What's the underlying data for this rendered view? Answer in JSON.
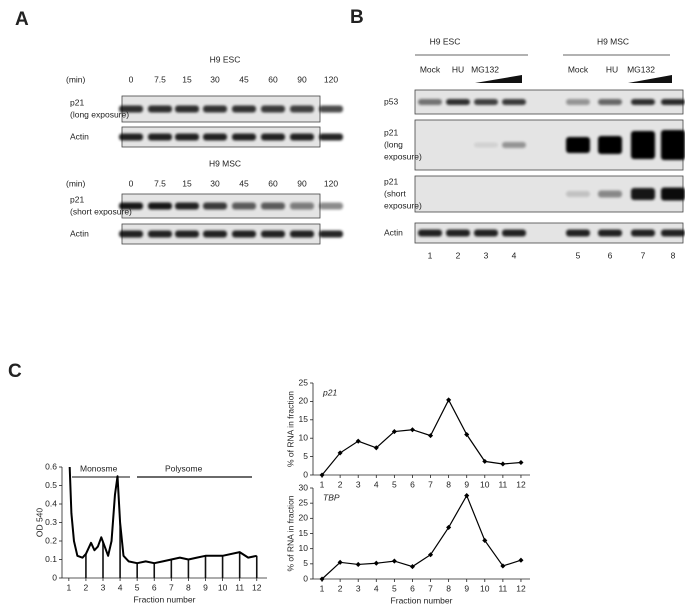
{
  "panel_a": {
    "label": "A",
    "groups": [
      {
        "title": "H9 ESC",
        "time_label": "(min)",
        "times": [
          "0",
          "7.5",
          "15",
          "30",
          "45",
          "60",
          "90",
          "120"
        ],
        "rows": [
          {
            "lines": [
              "p21",
              "(long exposure)"
            ]
          },
          {
            "lines": [
              "Actin"
            ]
          }
        ]
      },
      {
        "title": "H9 MSC",
        "time_label": "(min)",
        "times": [
          "0",
          "7.5",
          "15",
          "30",
          "45",
          "60",
          "90",
          "120"
        ],
        "rows": [
          {
            "lines": [
              "p21",
              "(short exposure)"
            ]
          },
          {
            "lines": [
              "Actin"
            ]
          }
        ]
      }
    ]
  },
  "panel_b": {
    "label": "B",
    "groups": [
      {
        "title": "H9 ESC",
        "lanes": [
          "Mock",
          "HU",
          "MG132"
        ]
      },
      {
        "title": "H9 MSC",
        "lanes": [
          "Mock",
          "HU",
          "MG132"
        ]
      }
    ],
    "rows": [
      {
        "lines": [
          "p53"
        ]
      },
      {
        "lines": [
          "p21",
          "(long",
          "exposure)"
        ]
      },
      {
        "lines": [
          "p21",
          "(short",
          "exposure)"
        ]
      },
      {
        "lines": [
          "Actin"
        ]
      }
    ],
    "lane_numbers": [
      "1",
      "2",
      "3",
      "4",
      "5",
      "6",
      "7",
      "8"
    ]
  },
  "panel_c": {
    "label": "C"
  },
  "chart_data": [
    {
      "type": "line",
      "ylabel": "OD 540",
      "xlabel": "Fraction number",
      "annotations": [
        "Monosme",
        "Polysome"
      ],
      "x": [
        1.05,
        1.15,
        1.3,
        1.5,
        1.8,
        2.0,
        2.3,
        2.5,
        2.7,
        2.9,
        3.1,
        3.3,
        3.5,
        3.7,
        3.85,
        4.0,
        4.2,
        4.5,
        5,
        5.5,
        6,
        6.5,
        7,
        7.5,
        8,
        8.5,
        9,
        10,
        11,
        11.5,
        12
      ],
      "values": [
        0.6,
        0.35,
        0.2,
        0.12,
        0.11,
        0.13,
        0.19,
        0.15,
        0.17,
        0.22,
        0.17,
        0.12,
        0.2,
        0.45,
        0.55,
        0.3,
        0.12,
        0.09,
        0.08,
        0.09,
        0.08,
        0.09,
        0.1,
        0.11,
        0.1,
        0.11,
        0.12,
        0.12,
        0.14,
        0.11,
        0.12
      ],
      "color": "#000000",
      "xlim": [
        0.6,
        12.6
      ],
      "ylim": [
        0,
        0.6
      ],
      "xticks": [
        1,
        2,
        3,
        4,
        5,
        6,
        7,
        8,
        9,
        10,
        11,
        12
      ],
      "yticks": [
        0,
        0.1,
        0.2,
        0.3,
        0.4,
        0.5,
        0.6
      ]
    },
    {
      "type": "line",
      "title": "p21",
      "ylabel": "% of RNA in fraction",
      "x": [
        1,
        2,
        3,
        4,
        5,
        6,
        7,
        8,
        9,
        10,
        11,
        12
      ],
      "values": [
        0,
        6,
        9.2,
        7.4,
        11.8,
        12.3,
        10.7,
        20.4,
        11,
        3.7,
        3,
        3.4
      ],
      "color": "#000000",
      "xlim": [
        0.5,
        12.5
      ],
      "ylim": [
        0,
        25
      ],
      "xticks": [
        1,
        2,
        3,
        4,
        5,
        6,
        7,
        8,
        9,
        10,
        11,
        12
      ],
      "yticks": [
        0,
        5,
        10,
        15,
        20,
        25
      ]
    },
    {
      "type": "line",
      "title": "TBP",
      "ylabel": "% of RNA in fraction",
      "xlabel": "Fraction number",
      "x": [
        1,
        2,
        3,
        4,
        5,
        6,
        7,
        8,
        9,
        10,
        11,
        12
      ],
      "values": [
        0,
        5.5,
        4.8,
        5.2,
        5.9,
        4.1,
        8,
        17,
        27.5,
        12.7,
        4.3,
        6.2
      ],
      "color": "#000000",
      "xlim": [
        0.5,
        12.5
      ],
      "ylim": [
        0,
        30
      ],
      "xticks": [
        1,
        2,
        3,
        4,
        5,
        6,
        7,
        8,
        9,
        10,
        11,
        12
      ],
      "yticks": [
        0,
        5,
        10,
        15,
        20,
        25,
        30
      ]
    }
  ]
}
